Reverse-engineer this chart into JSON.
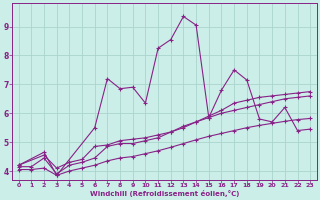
{
  "background_color": "#cceee8",
  "grid_color": "#aad4cc",
  "line_color": "#882288",
  "xlabel": "Windchill (Refroidissement éolien,°C)",
  "xlim": [
    -0.5,
    23.5
  ],
  "ylim": [
    3.7,
    9.8
  ],
  "xticks": [
    0,
    1,
    2,
    3,
    4,
    5,
    6,
    7,
    8,
    9,
    10,
    11,
    12,
    13,
    14,
    15,
    16,
    17,
    18,
    19,
    20,
    21,
    22,
    23
  ],
  "yticks": [
    4,
    5,
    6,
    7,
    8,
    9
  ],
  "line_volatile_x": [
    0,
    2,
    3,
    6,
    7,
    8,
    9,
    10,
    11,
    12,
    13,
    14,
    15,
    16,
    17,
    18,
    19,
    20,
    21,
    22,
    23
  ],
  "line_volatile_y": [
    4.2,
    4.65,
    3.85,
    5.5,
    7.2,
    6.85,
    6.9,
    6.35,
    8.25,
    8.55,
    9.35,
    9.05,
    5.85,
    6.8,
    7.5,
    7.15,
    5.8,
    5.7,
    6.2,
    5.4,
    5.45
  ],
  "line_upper_x": [
    0,
    2,
    3,
    4,
    5,
    6,
    7,
    8,
    9,
    10,
    11,
    12,
    13,
    14,
    15,
    16,
    17,
    18,
    19,
    20,
    21,
    22,
    23
  ],
  "line_upper_y": [
    4.2,
    4.55,
    4.1,
    4.3,
    4.4,
    4.85,
    4.9,
    5.05,
    5.1,
    5.15,
    5.25,
    5.35,
    5.55,
    5.7,
    5.9,
    6.1,
    6.35,
    6.45,
    6.55,
    6.6,
    6.65,
    6.7,
    6.75
  ],
  "line_mid_x": [
    0,
    1,
    2,
    3,
    4,
    5,
    6,
    7,
    8,
    9,
    10,
    11,
    12,
    13,
    14,
    15,
    16,
    17,
    18,
    19,
    20,
    21,
    22,
    23
  ],
  "line_mid_y": [
    4.15,
    4.15,
    4.45,
    3.9,
    4.2,
    4.3,
    4.45,
    4.85,
    4.95,
    4.95,
    5.05,
    5.15,
    5.35,
    5.5,
    5.7,
    5.85,
    6.0,
    6.1,
    6.2,
    6.3,
    6.4,
    6.5,
    6.55,
    6.6
  ],
  "line_lower_x": [
    0,
    1,
    2,
    3,
    4,
    5,
    6,
    7,
    8,
    9,
    10,
    11,
    12,
    13,
    14,
    15,
    16,
    17,
    18,
    19,
    20,
    21,
    22,
    23
  ],
  "line_lower_y": [
    4.05,
    4.05,
    4.1,
    3.85,
    4.0,
    4.1,
    4.2,
    4.35,
    4.45,
    4.5,
    4.6,
    4.7,
    4.82,
    4.95,
    5.08,
    5.2,
    5.3,
    5.4,
    5.5,
    5.58,
    5.65,
    5.72,
    5.78,
    5.82
  ]
}
